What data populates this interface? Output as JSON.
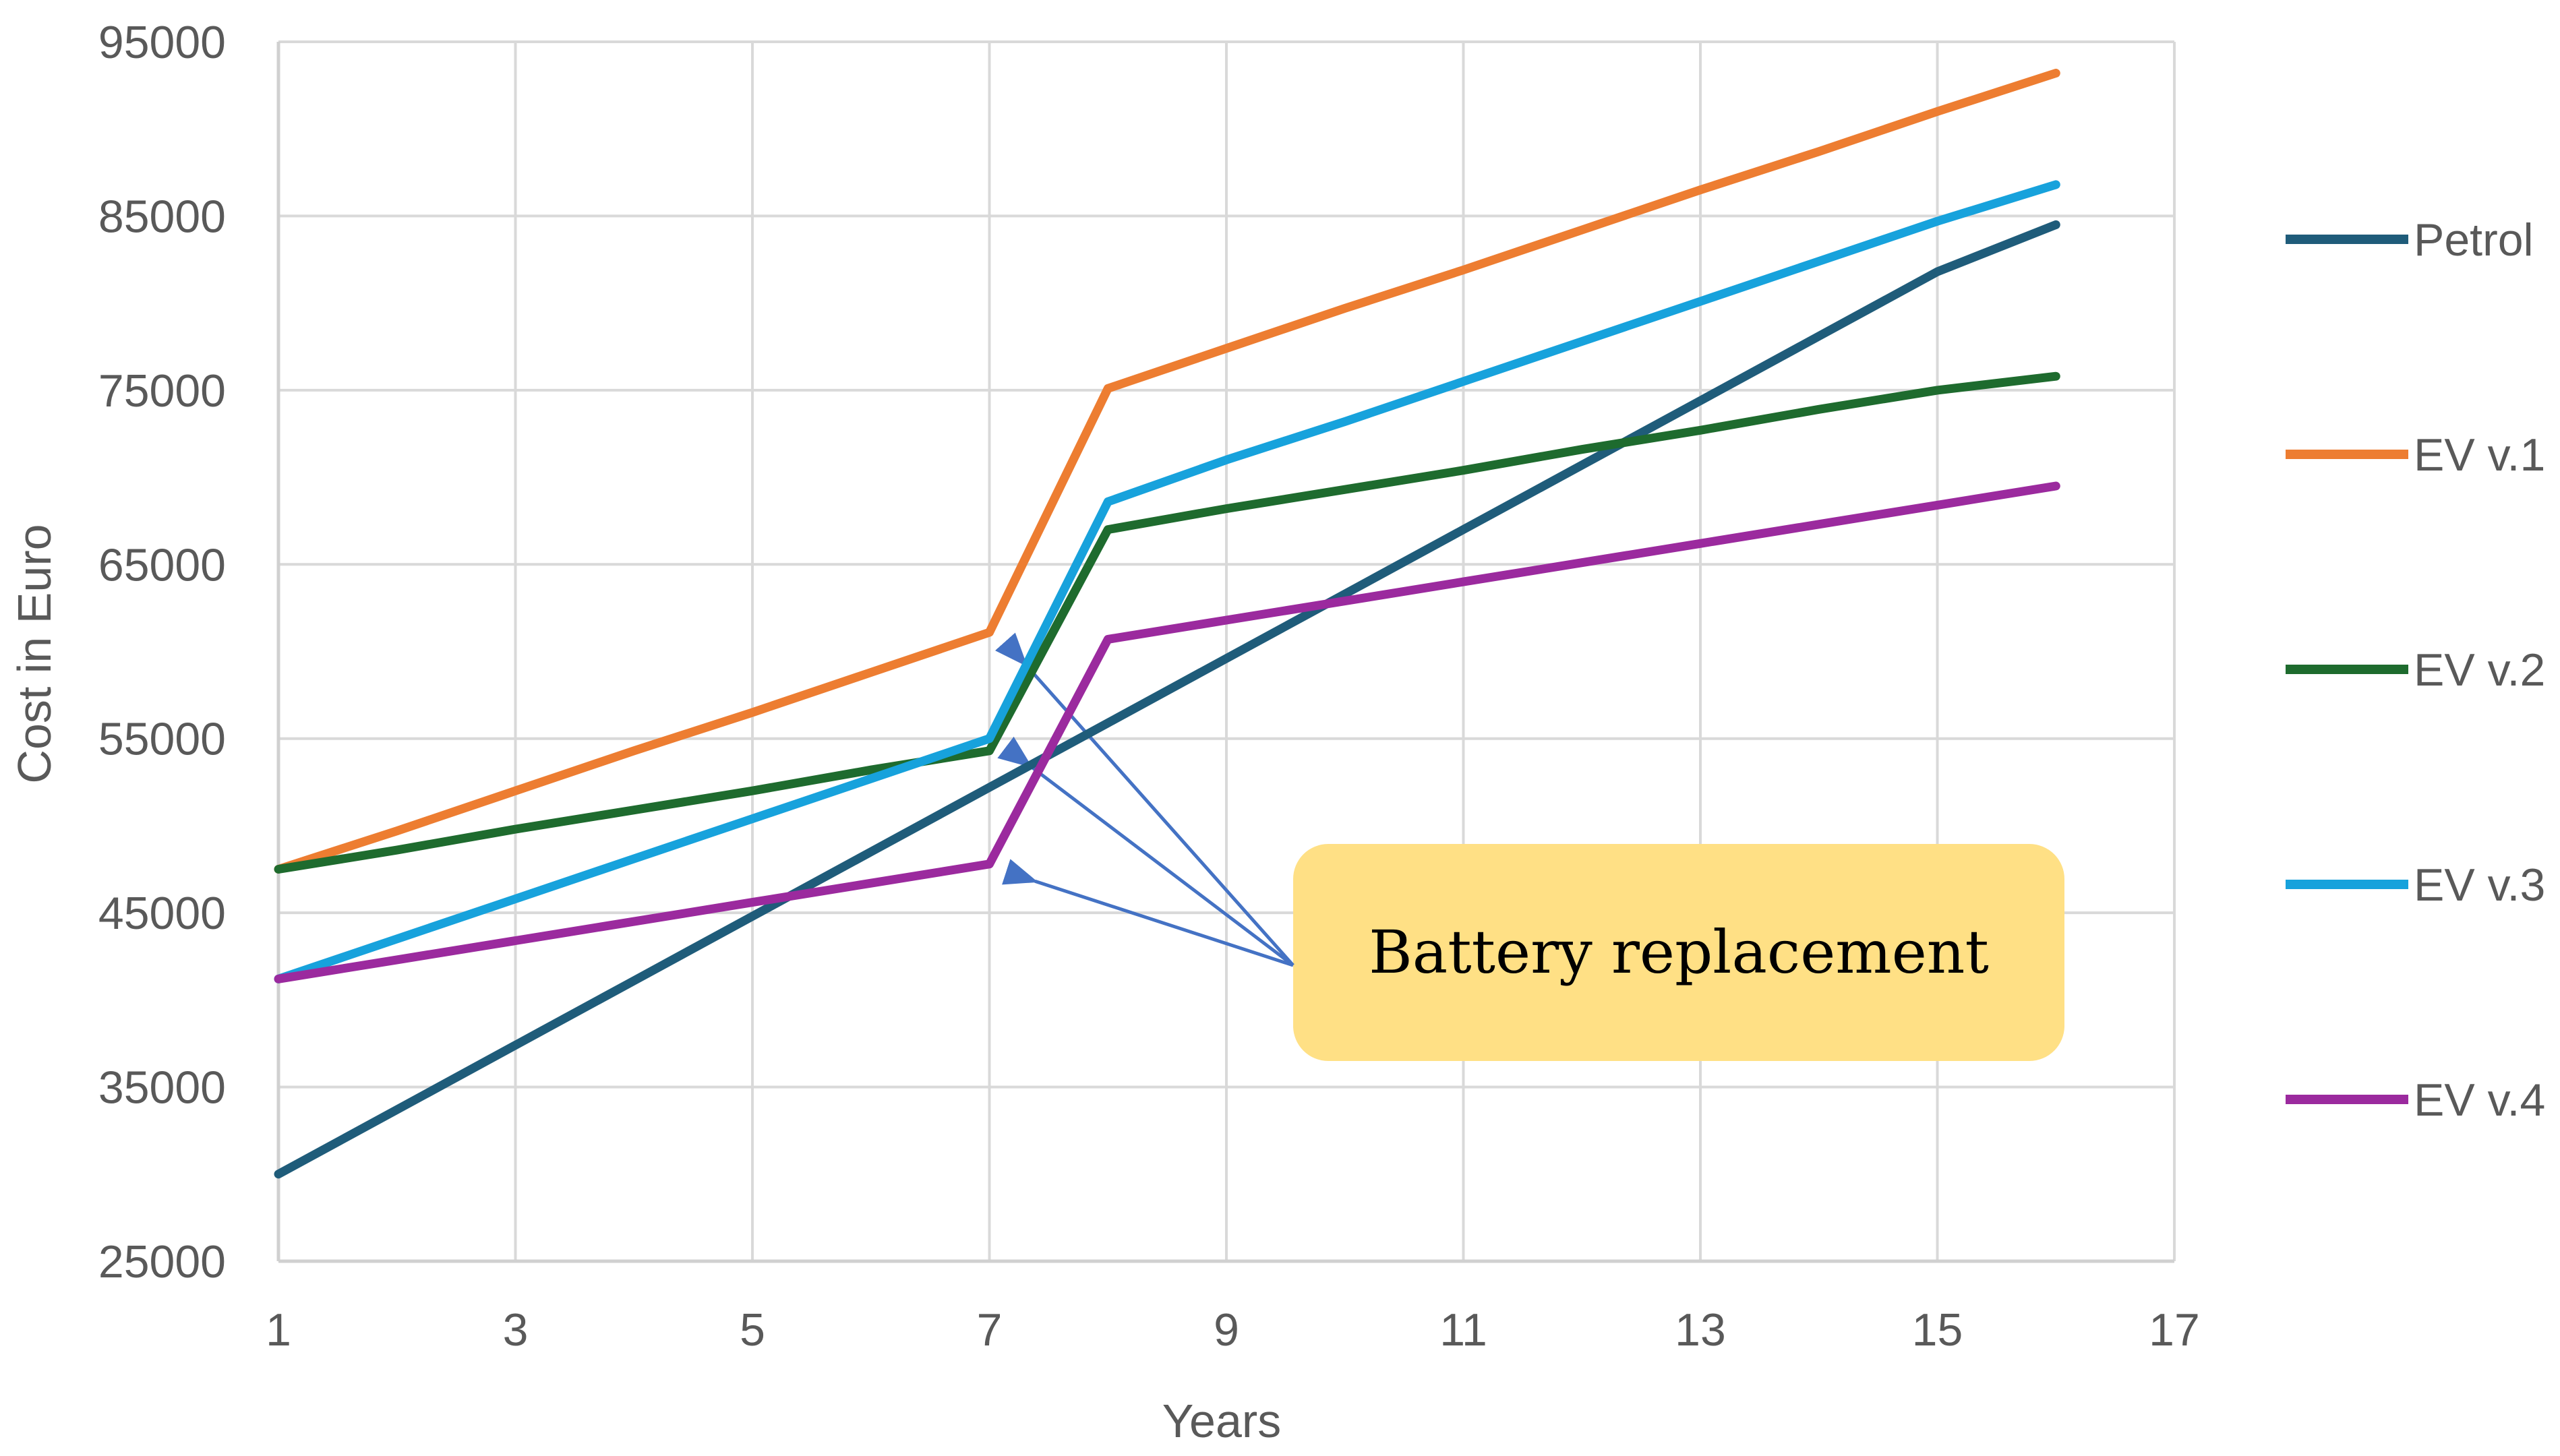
{
  "chart_data": {
    "type": "line",
    "title": "",
    "xlabel": "Years",
    "ylabel": "Cost in Euro",
    "xlim": [
      1,
      17
    ],
    "ylim": [
      25000,
      95000
    ],
    "x_ticks": [
      "1",
      "3",
      "5",
      "7",
      "9",
      "11",
      "13",
      "15",
      "17"
    ],
    "y_ticks": [
      "25000",
      "35000",
      "45000",
      "55000",
      "65000",
      "75000",
      "85000",
      "95000"
    ],
    "grid": true,
    "legend_position": "right",
    "x": [
      1,
      2,
      3,
      4,
      5,
      6,
      7,
      8,
      9,
      10,
      11,
      12,
      13,
      14,
      15,
      16
    ],
    "series": [
      {
        "name": "Petrol",
        "color": "#1F5C7A",
        "values": [
          30000,
          33700,
          37400,
          41100,
          44800,
          48500,
          52200,
          55900,
          59600,
          63300,
          67000,
          70700,
          74400,
          78100,
          81800,
          84500
        ]
      },
      {
        "name": "EV v.1",
        "color": "#ED7D31",
        "values": [
          47500,
          49700,
          52000,
          54300,
          56500,
          58800,
          61100,
          75100,
          77400,
          79700,
          81900,
          84200,
          86500,
          88700,
          91000,
          93200
        ]
      },
      {
        "name": "EV v.2",
        "color": "#1E6B2E",
        "values": [
          47500,
          48600,
          49800,
          50900,
          52000,
          53200,
          54300,
          67000,
          68200,
          69300,
          70400,
          71600,
          72700,
          73900,
          75000,
          75800
        ]
      },
      {
        "name": "EV v.3",
        "color": "#17A2DC",
        "values": [
          41200,
          43500,
          45800,
          48100,
          50400,
          52700,
          55000,
          68600,
          71000,
          73200,
          75500,
          77800,
          80100,
          82400,
          84700,
          86800
        ]
      },
      {
        "name": "EV v.4",
        "color": "#9B2A9E",
        "values": [
          41200,
          42300,
          43400,
          44500,
          45600,
          46700,
          47800,
          60700,
          61800,
          62900,
          64000,
          65100,
          66200,
          67300,
          68400,
          69500
        ]
      }
    ],
    "annotations": [
      {
        "text": "Battery replacement",
        "points_to": [
          {
            "series": "EV v.1",
            "x": 7
          },
          {
            "series": "EV v.3",
            "x": 7
          },
          {
            "series": "EV v.4",
            "x": 7
          }
        ]
      }
    ],
    "colors": {
      "grid": "#D9D9D9",
      "callout_fill": "#FFE085",
      "arrow": "#4472C4"
    }
  }
}
